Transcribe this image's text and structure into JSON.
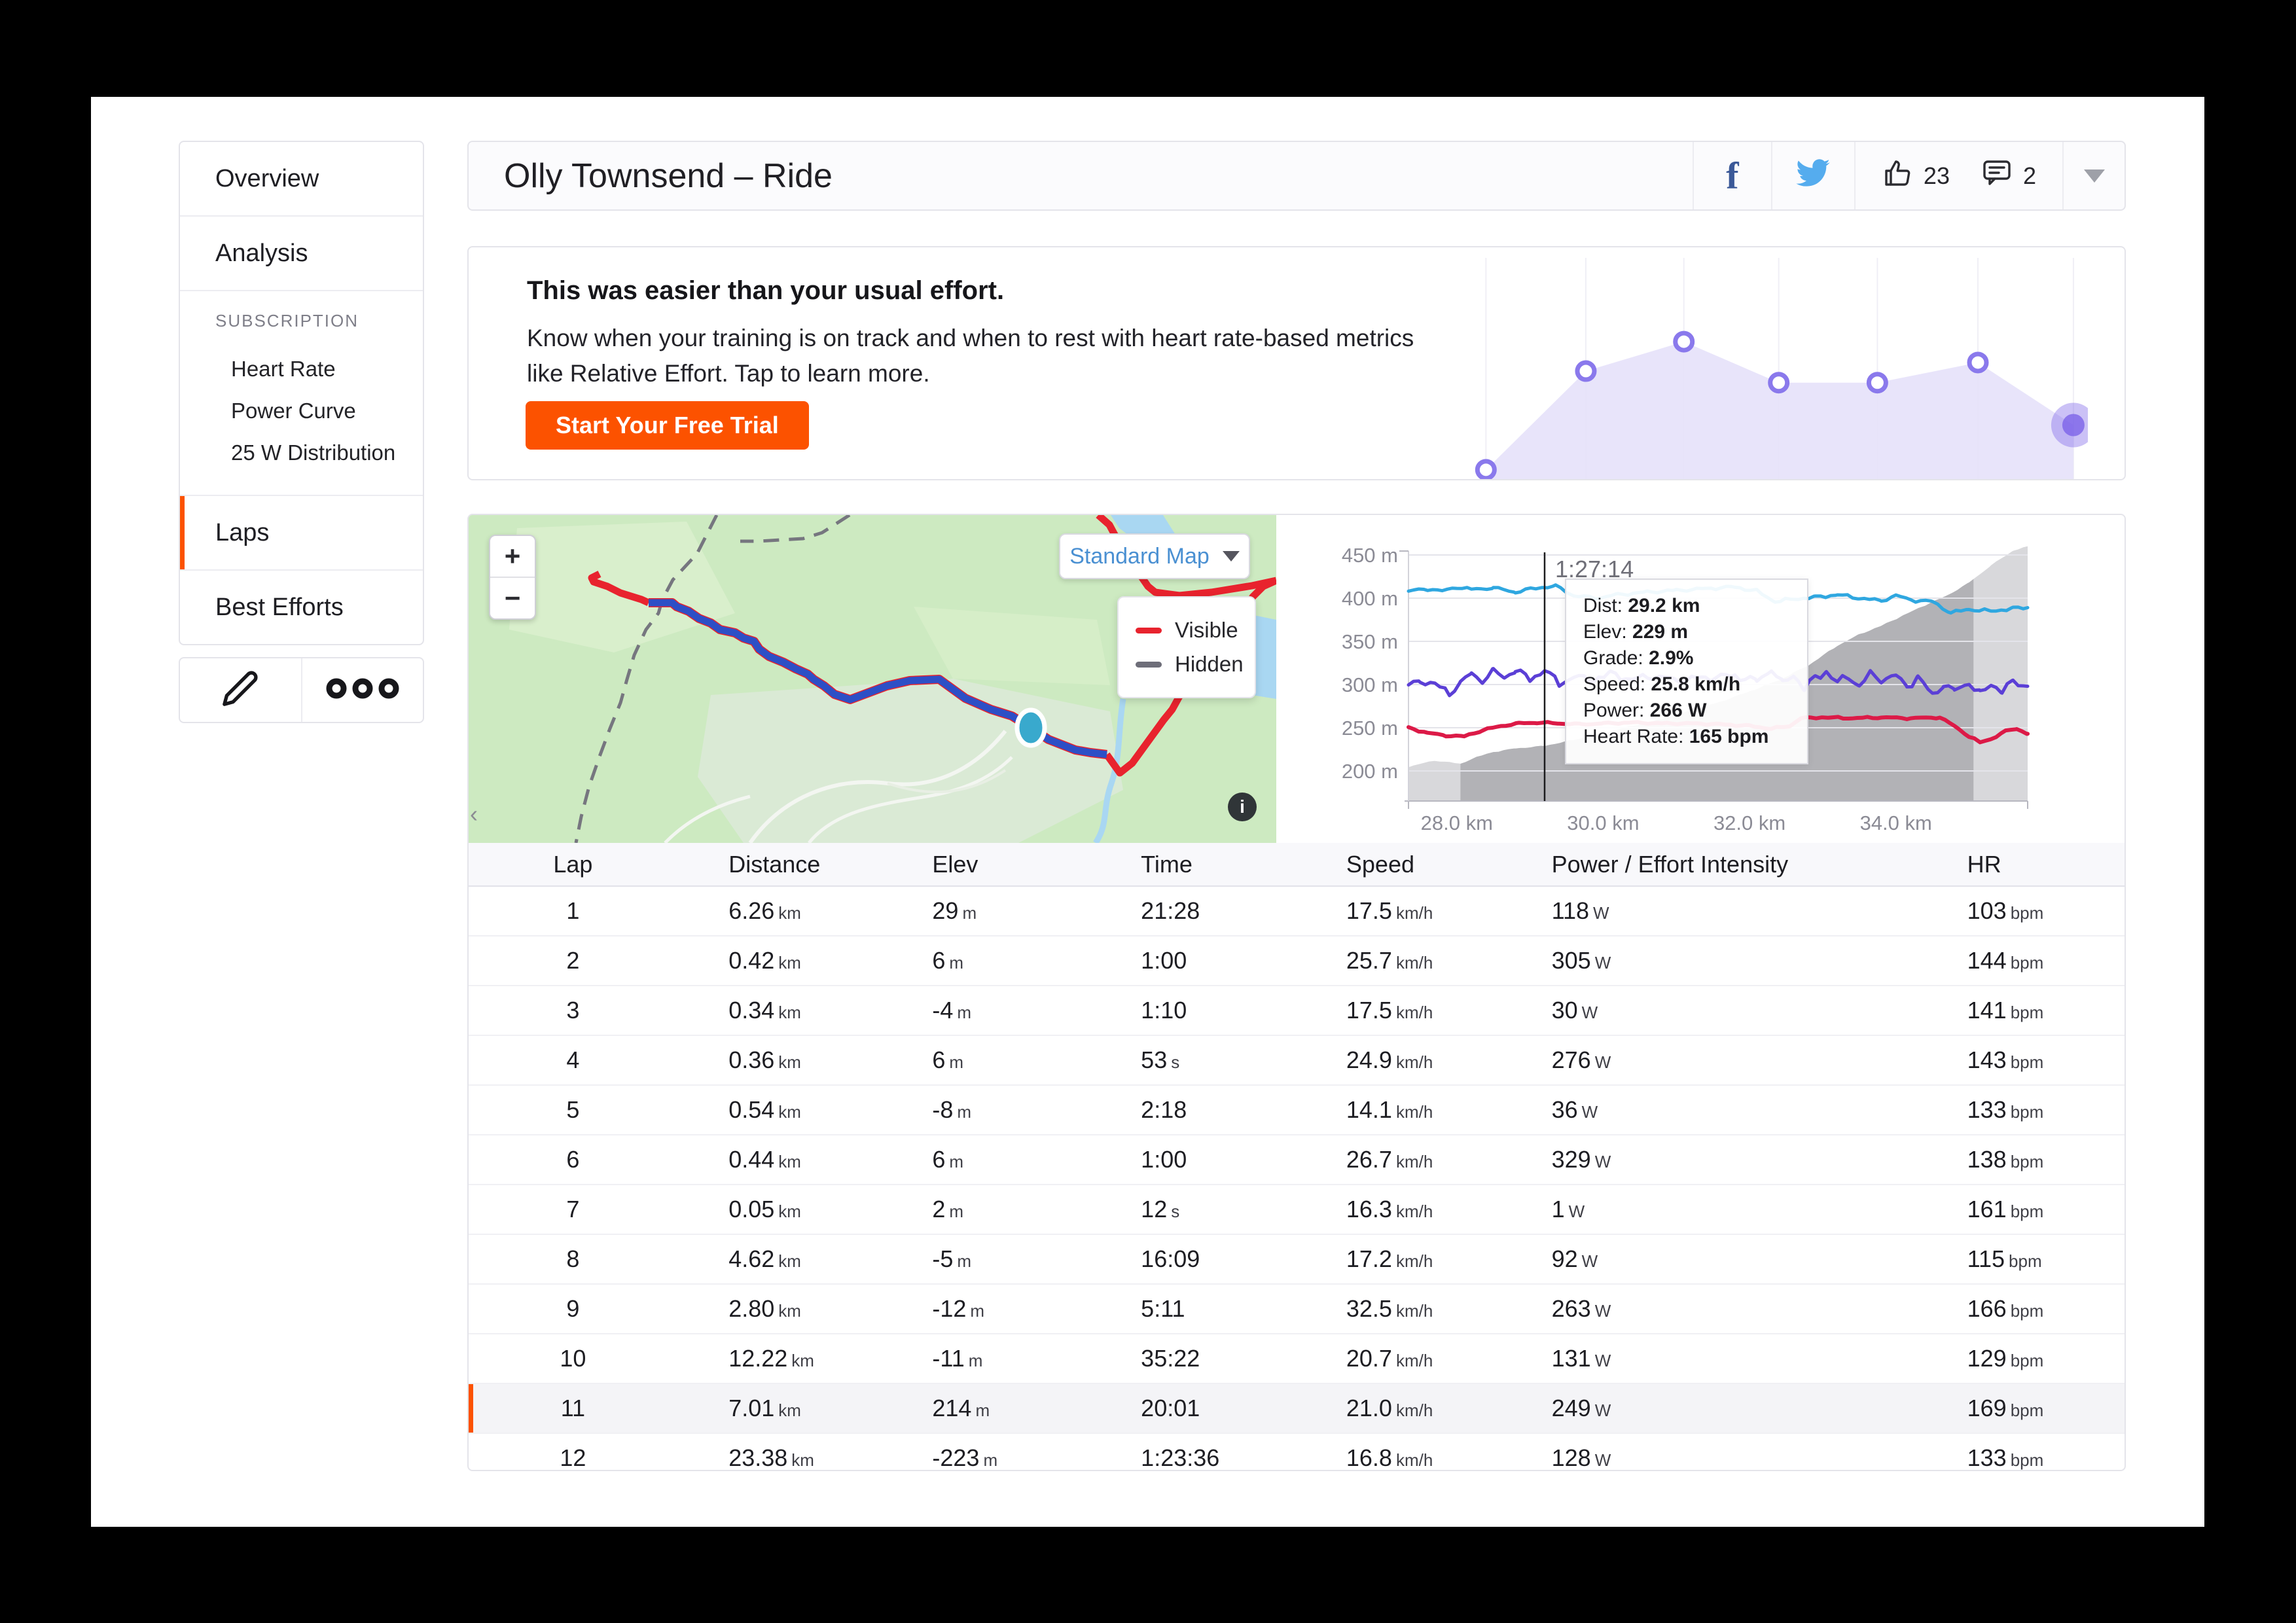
{
  "header": {
    "title": "Olly Townsend – Ride",
    "kudos_count": "23",
    "comments_count": "2"
  },
  "sidebar": {
    "overview_label": "Overview",
    "analysis_label": "Analysis",
    "subscription_label": "SUBSCRIPTION",
    "subscription_items": [
      "Heart Rate",
      "Power Curve",
      "25 W Distribution"
    ],
    "laps_label": "Laps",
    "best_efforts_label": "Best Efforts"
  },
  "promo": {
    "heading": "This was easier than your usual effort.",
    "body": "Know when your training is on track and when to rest with heart rate-based metrics like Relative Effort. Tap to learn more.",
    "cta_label": "Start Your Free Trial"
  },
  "map": {
    "zoom_in": "+",
    "zoom_out": "−",
    "layer_button_label": "Standard Map",
    "legend": [
      {
        "label": "Visible",
        "color": "#e8232e"
      },
      {
        "label": "Hidden",
        "color": "#6e6e79"
      }
    ],
    "attribution_icon": "i",
    "collapse_icon": "‹"
  },
  "chart_data": [
    {
      "id": "relative-effort-trend",
      "type": "area",
      "description": "weekly relative effort sparkline, values are [x fraction, height fraction above baseline]",
      "points_rel": [
        [
          0.042,
          0.04
        ],
        [
          0.201,
          0.466
        ],
        [
          0.357,
          0.593
        ],
        [
          0.508,
          0.416
        ],
        [
          0.665,
          0.416
        ],
        [
          0.825,
          0.503
        ],
        [
          0.977,
          0.233
        ]
      ],
      "fill": "#e6e1f9",
      "ring_color": "#8a79ec",
      "last_point_color": "#7c63e8",
      "grid_color": "#f0eff6",
      "highlight_last": true
    },
    {
      "id": "lap-analysis",
      "type": "line",
      "x_unit": "km",
      "x_range": [
        27.34,
        35.8
      ],
      "x_ticks": [
        {
          "km": 28,
          "label": "28.0 km"
        },
        {
          "km": 30,
          "label": "30.0 km"
        },
        {
          "km": 32,
          "label": "32.0 km"
        },
        {
          "km": 34,
          "label": "34.0 km"
        }
      ],
      "y_ticks": [
        {
          "v": 450,
          "label": "450 m"
        },
        {
          "v": 400,
          "label": "400 m"
        },
        {
          "v": 350,
          "label": "350 m"
        },
        {
          "v": 300,
          "label": "300 m"
        },
        {
          "v": 250,
          "label": "250 m"
        },
        {
          "v": 200,
          "label": "200 m"
        }
      ],
      "y_domain": [
        165,
        455
      ],
      "selection_km": [
        28.05,
        35.06
      ],
      "cursor": {
        "km": 29.2,
        "time_label": "1:27:14"
      },
      "tooltip_rows": [
        [
          "Dist:",
          "29.2 km"
        ],
        [
          "Elev:",
          "229 m"
        ],
        [
          "Grade:",
          "2.9%"
        ],
        [
          "Speed:",
          "25.8 km/h"
        ],
        [
          "Power:",
          "266 W"
        ],
        [
          "Heart Rate:",
          "165 bpm"
        ]
      ],
      "elevation_profile": [
        [
          27.34,
          205
        ],
        [
          27.7,
          212
        ],
        [
          27.9,
          210
        ],
        [
          28.05,
          208
        ],
        [
          28.2,
          214
        ],
        [
          28.5,
          222
        ],
        [
          28.8,
          226
        ],
        [
          29.2,
          229
        ],
        [
          29.6,
          236
        ],
        [
          30.0,
          244
        ],
        [
          30.4,
          252
        ],
        [
          30.8,
          260
        ],
        [
          31.2,
          270
        ],
        [
          31.6,
          280
        ],
        [
          32.0,
          292
        ],
        [
          32.4,
          305
        ],
        [
          32.8,
          322
        ],
        [
          33.2,
          345
        ],
        [
          33.5,
          358
        ],
        [
          33.8,
          368
        ],
        [
          34.1,
          380
        ],
        [
          34.4,
          392
        ],
        [
          34.7,
          403
        ],
        [
          35.0,
          418
        ],
        [
          35.3,
          438
        ],
        [
          35.6,
          455
        ],
        [
          35.8,
          460
        ]
      ],
      "series": [
        {
          "name": "speed",
          "color": "#2fa7e0",
          "width": 5,
          "amp": 2.2,
          "seed": 1,
          "points": [
            [
              27.34,
              408
            ],
            [
              27.6,
              411
            ],
            [
              27.8,
              408
            ],
            [
              28.0,
              413
            ],
            [
              28.2,
              410
            ],
            [
              28.5,
              412
            ],
            [
              28.8,
              407
            ],
            [
              29.1,
              412
            ],
            [
              29.35,
              414
            ],
            [
              29.6,
              403
            ],
            [
              29.9,
              400
            ],
            [
              30.2,
              404
            ],
            [
              30.6,
              407
            ],
            [
              31.0,
              409
            ],
            [
              31.4,
              411
            ],
            [
              31.8,
              413
            ],
            [
              32.1,
              408
            ],
            [
              32.35,
              396
            ],
            [
              32.6,
              399
            ],
            [
              32.9,
              401
            ],
            [
              33.2,
              404
            ],
            [
              33.5,
              400
            ],
            [
              33.8,
              397
            ],
            [
              34.0,
              403
            ],
            [
              34.2,
              398
            ],
            [
              34.5,
              396
            ],
            [
              34.75,
              383
            ],
            [
              35.0,
              387
            ],
            [
              35.3,
              385
            ],
            [
              35.6,
              388
            ],
            [
              35.8,
              389
            ]
          ]
        },
        {
          "name": "power",
          "color": "#5b3fd6",
          "width": 5,
          "amp": 5.5,
          "seed": 2,
          "points": [
            [
              27.34,
              298
            ],
            [
              27.5,
              305
            ],
            [
              27.7,
              300
            ],
            [
              27.9,
              290
            ],
            [
              28.05,
              302
            ],
            [
              28.2,
              312
            ],
            [
              28.35,
              305
            ],
            [
              28.5,
              315
            ],
            [
              28.65,
              308
            ],
            [
              28.8,
              318
            ],
            [
              29.0,
              305
            ],
            [
              29.2,
              318
            ],
            [
              29.4,
              300
            ],
            [
              29.6,
              310
            ],
            [
              29.8,
              305
            ],
            [
              30.1,
              312
            ],
            [
              30.4,
              306
            ],
            [
              30.7,
              310
            ],
            [
              31.0,
              305
            ],
            [
              31.4,
              308
            ],
            [
              31.8,
              310
            ],
            [
              32.1,
              304
            ],
            [
              32.3,
              318
            ],
            [
              32.45,
              300
            ],
            [
              32.6,
              312
            ],
            [
              32.75,
              295
            ],
            [
              32.9,
              308
            ],
            [
              33.05,
              315
            ],
            [
              33.2,
              302
            ],
            [
              33.35,
              310
            ],
            [
              33.5,
              298
            ],
            [
              33.65,
              312
            ],
            [
              33.8,
              306
            ],
            [
              34.0,
              310
            ],
            [
              34.15,
              298
            ],
            [
              34.3,
              308
            ],
            [
              34.5,
              288
            ],
            [
              34.65,
              300
            ],
            [
              34.8,
              292
            ],
            [
              35.0,
              303
            ],
            [
              35.15,
              288
            ],
            [
              35.3,
              300
            ],
            [
              35.45,
              294
            ],
            [
              35.6,
              302
            ],
            [
              35.8,
              298
            ]
          ]
        },
        {
          "name": "heart-rate",
          "color": "#dc1a47",
          "width": 6,
          "amp": 1.3,
          "seed": 3,
          "points": [
            [
              27.34,
              250
            ],
            [
              27.6,
              244
            ],
            [
              27.85,
              241
            ],
            [
              28.1,
              240
            ],
            [
              28.35,
              247
            ],
            [
              28.6,
              252
            ],
            [
              28.85,
              255
            ],
            [
              29.1,
              256
            ],
            [
              29.4,
              255
            ],
            [
              29.7,
              254
            ],
            [
              30.0,
              255
            ],
            [
              30.4,
              256
            ],
            [
              30.8,
              255
            ],
            [
              31.2,
              255
            ],
            [
              31.6,
              254
            ],
            [
              32.0,
              252
            ],
            [
              32.3,
              249
            ],
            [
              32.55,
              252
            ],
            [
              32.7,
              261
            ],
            [
              33.0,
              262
            ],
            [
              33.4,
              261
            ],
            [
              33.8,
              262
            ],
            [
              34.2,
              261
            ],
            [
              34.6,
              262
            ],
            [
              34.8,
              252
            ],
            [
              35.0,
              240
            ],
            [
              35.15,
              233
            ],
            [
              35.3,
              237
            ],
            [
              35.5,
              246
            ],
            [
              35.65,
              249
            ],
            [
              35.8,
              243
            ]
          ]
        }
      ],
      "area_color": "#d8d8db",
      "area_selected_color": "#b2b2b6",
      "grid_color": "#e4e4ea",
      "axis_color": "#b7b7c0",
      "label_color": "#8b8b95"
    }
  ],
  "laps": {
    "columns": [
      "Lap",
      "Distance",
      "Elev",
      "Time",
      "Speed",
      "Power / Effort Intensity",
      "HR"
    ],
    "selected_lap": "11",
    "rows": [
      {
        "lap": "1",
        "distance": "6.26",
        "distance_unit": "km",
        "elev": "29",
        "elev_unit": "m",
        "time": "21:28",
        "time_unit": "",
        "speed": "17.5",
        "speed_unit": "km/h",
        "power": "118",
        "power_unit": "W",
        "hr": "103",
        "hr_unit": "bpm"
      },
      {
        "lap": "2",
        "distance": "0.42",
        "distance_unit": "km",
        "elev": "6",
        "elev_unit": "m",
        "time": "1:00",
        "time_unit": "",
        "speed": "25.7",
        "speed_unit": "km/h",
        "power": "305",
        "power_unit": "W",
        "hr": "144",
        "hr_unit": "bpm"
      },
      {
        "lap": "3",
        "distance": "0.34",
        "distance_unit": "km",
        "elev": "-4",
        "elev_unit": "m",
        "time": "1:10",
        "time_unit": "",
        "speed": "17.5",
        "speed_unit": "km/h",
        "power": "30",
        "power_unit": "W",
        "hr": "141",
        "hr_unit": "bpm"
      },
      {
        "lap": "4",
        "distance": "0.36",
        "distance_unit": "km",
        "elev": "6",
        "elev_unit": "m",
        "time": "53",
        "time_unit": "s",
        "speed": "24.9",
        "speed_unit": "km/h",
        "power": "276",
        "power_unit": "W",
        "hr": "143",
        "hr_unit": "bpm"
      },
      {
        "lap": "5",
        "distance": "0.54",
        "distance_unit": "km",
        "elev": "-8",
        "elev_unit": "m",
        "time": "2:18",
        "time_unit": "",
        "speed": "14.1",
        "speed_unit": "km/h",
        "power": "36",
        "power_unit": "W",
        "hr": "133",
        "hr_unit": "bpm"
      },
      {
        "lap": "6",
        "distance": "0.44",
        "distance_unit": "km",
        "elev": "6",
        "elev_unit": "m",
        "time": "1:00",
        "time_unit": "",
        "speed": "26.7",
        "speed_unit": "km/h",
        "power": "329",
        "power_unit": "W",
        "hr": "138",
        "hr_unit": "bpm"
      },
      {
        "lap": "7",
        "distance": "0.05",
        "distance_unit": "km",
        "elev": "2",
        "elev_unit": "m",
        "time": "12",
        "time_unit": "s",
        "speed": "16.3",
        "speed_unit": "km/h",
        "power": "1",
        "power_unit": "W",
        "hr": "161",
        "hr_unit": "bpm"
      },
      {
        "lap": "8",
        "distance": "4.62",
        "distance_unit": "km",
        "elev": "-5",
        "elev_unit": "m",
        "time": "16:09",
        "time_unit": "",
        "speed": "17.2",
        "speed_unit": "km/h",
        "power": "92",
        "power_unit": "W",
        "hr": "115",
        "hr_unit": "bpm"
      },
      {
        "lap": "9",
        "distance": "2.80",
        "distance_unit": "km",
        "elev": "-12",
        "elev_unit": "m",
        "time": "5:11",
        "time_unit": "",
        "speed": "32.5",
        "speed_unit": "km/h",
        "power": "263",
        "power_unit": "W",
        "hr": "166",
        "hr_unit": "bpm"
      },
      {
        "lap": "10",
        "distance": "12.22",
        "distance_unit": "km",
        "elev": "-11",
        "elev_unit": "m",
        "time": "35:22",
        "time_unit": "",
        "speed": "20.7",
        "speed_unit": "km/h",
        "power": "131",
        "power_unit": "W",
        "hr": "129",
        "hr_unit": "bpm"
      },
      {
        "lap": "11",
        "distance": "7.01",
        "distance_unit": "km",
        "elev": "214",
        "elev_unit": "m",
        "time": "20:01",
        "time_unit": "",
        "speed": "21.0",
        "speed_unit": "km/h",
        "power": "249",
        "power_unit": "W",
        "hr": "169",
        "hr_unit": "bpm"
      },
      {
        "lap": "12",
        "distance": "23.38",
        "distance_unit": "km",
        "elev": "-223",
        "elev_unit": "m",
        "time": "1:23:36",
        "time_unit": "",
        "speed": "16.8",
        "speed_unit": "km/h",
        "power": "128",
        "power_unit": "W",
        "hr": "133",
        "hr_unit": "bpm"
      }
    ]
  }
}
